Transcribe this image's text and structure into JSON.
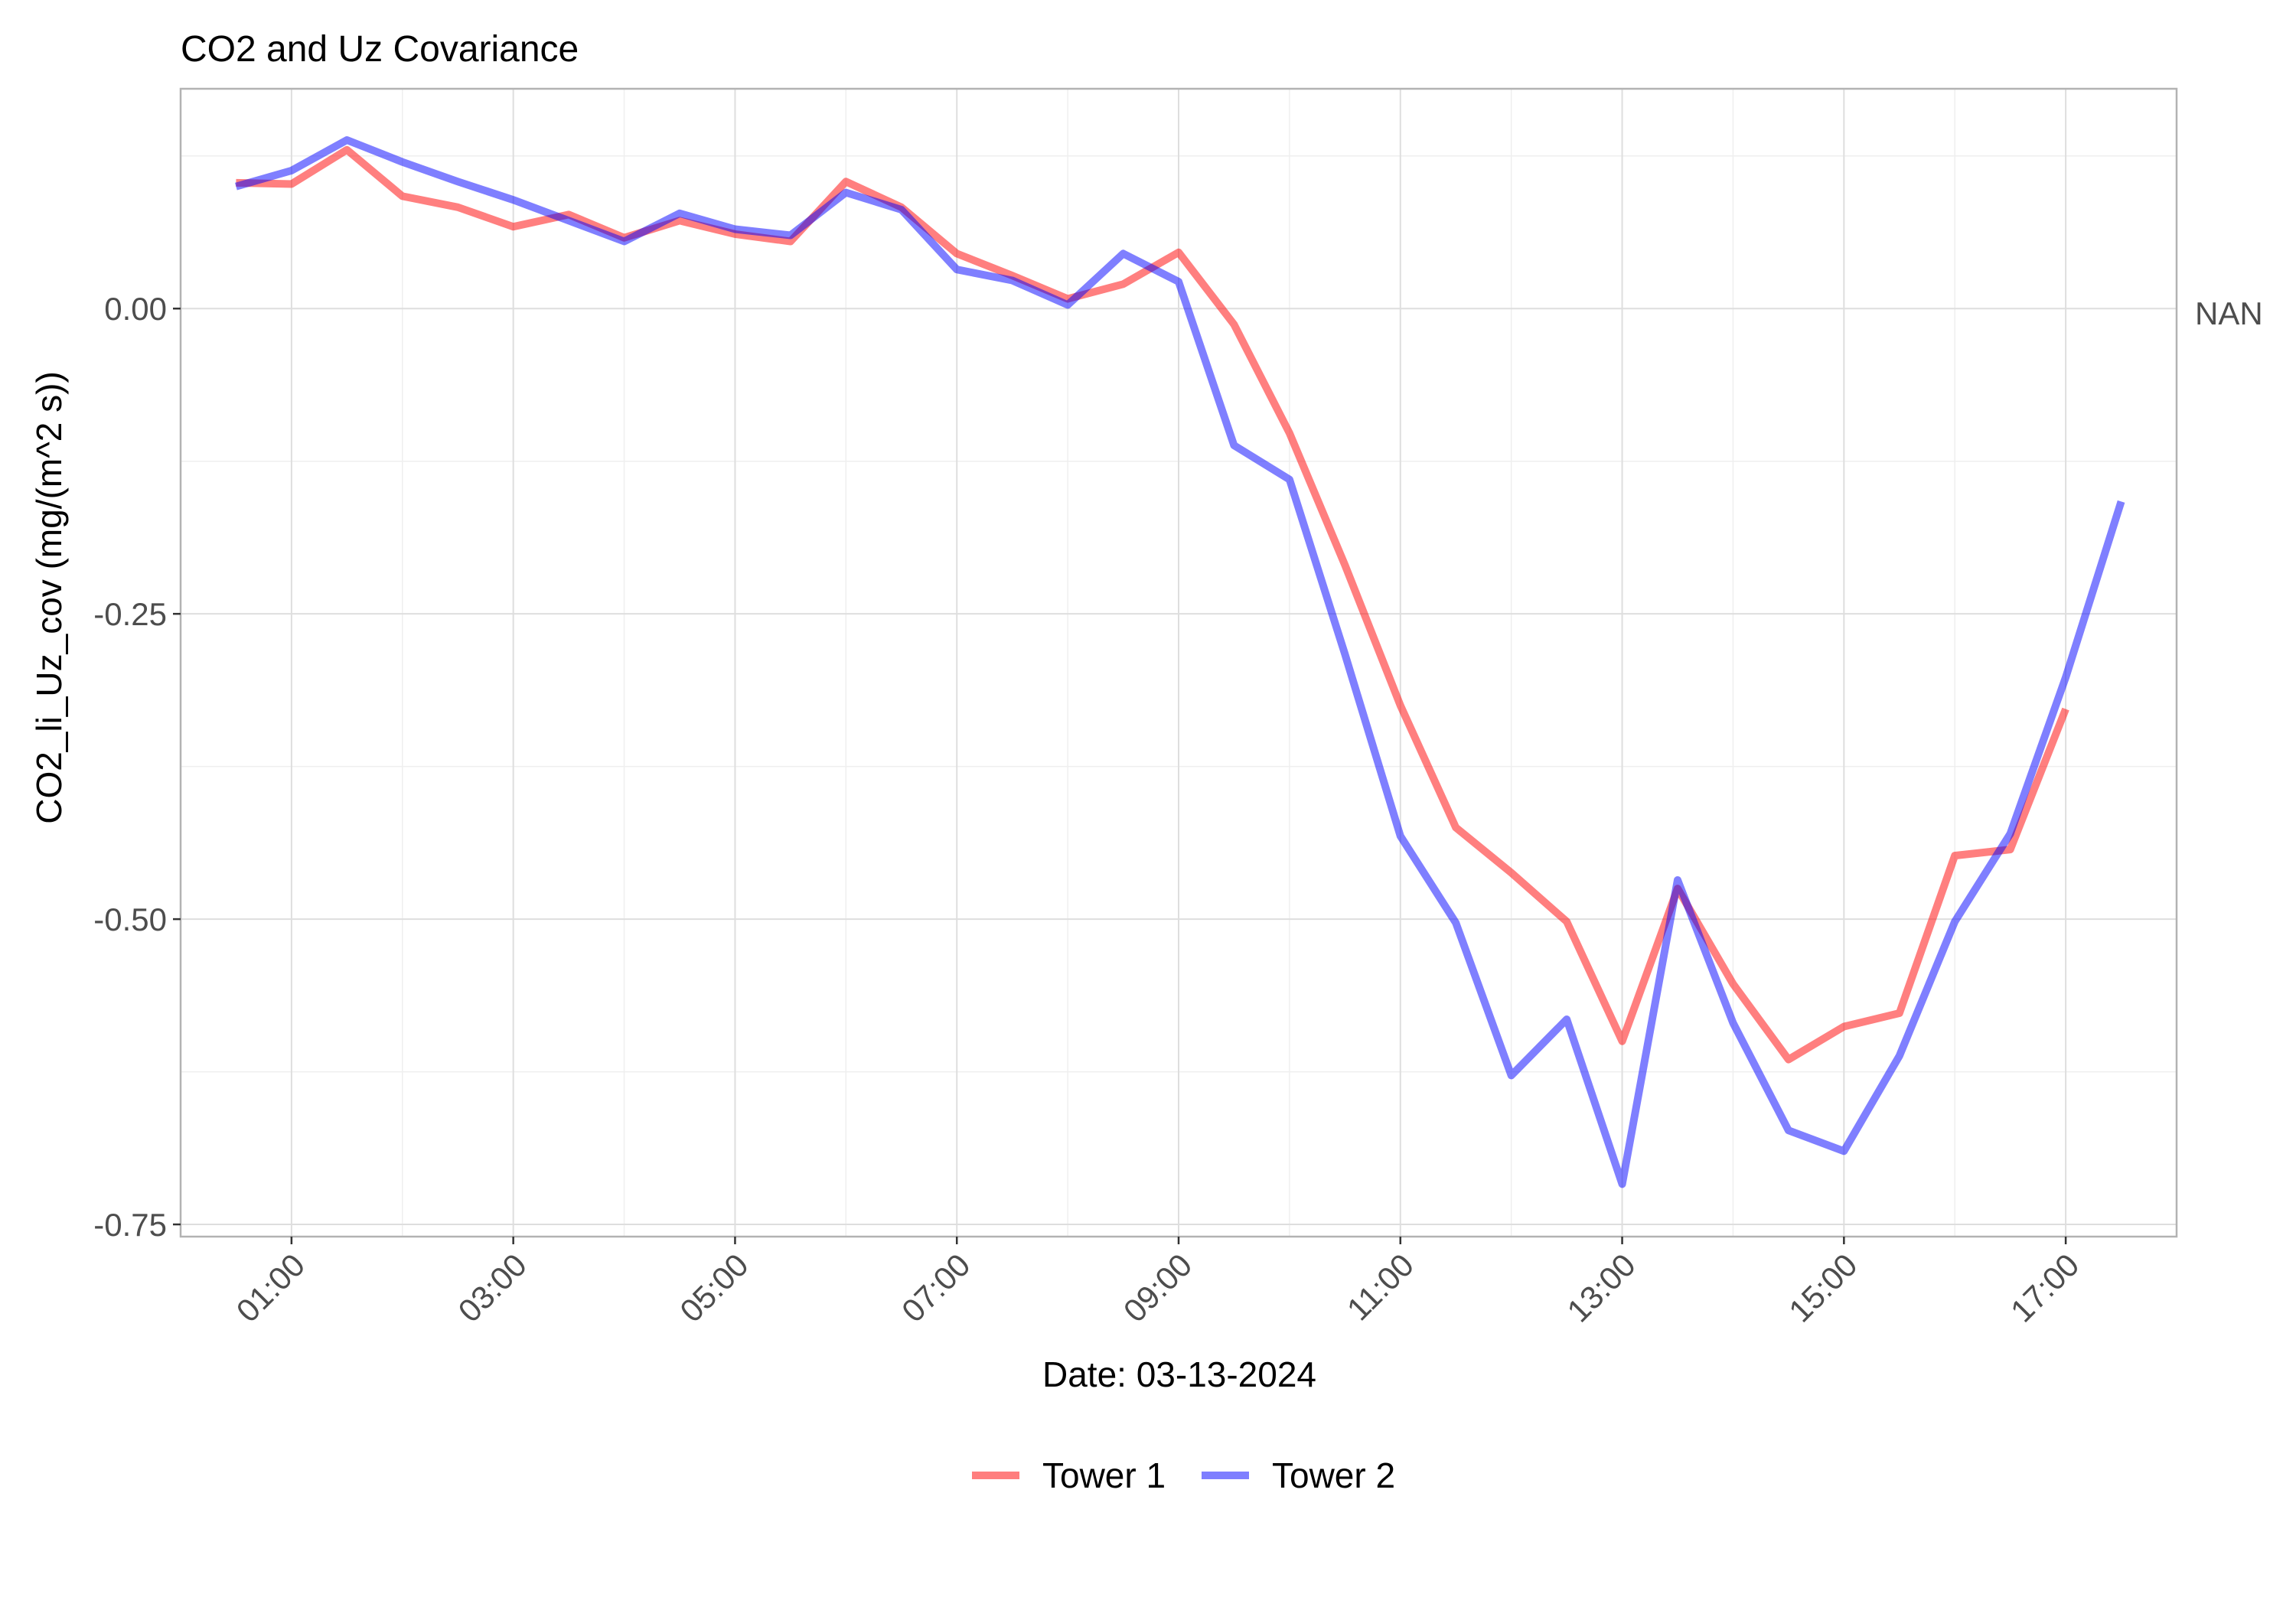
{
  "chart_data": {
    "type": "line",
    "title": "CO2 and Uz Covariance",
    "xlabel": "Date: 03-13-2024",
    "ylabel": "CO2_li_Uz_cov (mg/(m^2 s))",
    "secondary_axis_label": "NAN",
    "x_tick_labels": [
      "01:00",
      "03:00",
      "05:00",
      "07:00",
      "09:00",
      "11:00",
      "13:00",
      "15:00",
      "17:00"
    ],
    "y_tick_labels": [
      "0.00",
      "-0.25",
      "-0.50",
      "-0.75"
    ],
    "y_ticks": [
      0.0,
      -0.25,
      -0.5,
      -0.75
    ],
    "x_range_hours": [
      0.0,
      18.0
    ],
    "ylim": [
      -0.76,
      0.18
    ],
    "grid": true,
    "legend_position": "bottom",
    "x": [
      "00:30",
      "01:00",
      "01:30",
      "02:00",
      "02:30",
      "03:00",
      "03:30",
      "04:00",
      "04:30",
      "05:00",
      "05:30",
      "06:00",
      "06:30",
      "07:00",
      "07:30",
      "08:00",
      "08:30",
      "09:00",
      "09:30",
      "10:00",
      "10:30",
      "11:00",
      "11:30",
      "12:00",
      "12:30",
      "13:00",
      "13:30",
      "14:00",
      "14:30",
      "15:00",
      "15:30",
      "16:00",
      "16:30",
      "17:00",
      "17:30"
    ],
    "series": [
      {
        "name": "Tower 1",
        "color": "#ff0000",
        "values": [
          0.103,
          0.102,
          0.13,
          0.092,
          0.083,
          0.067,
          0.077,
          0.058,
          0.072,
          0.061,
          0.055,
          0.104,
          0.083,
          0.045,
          0.027,
          0.008,
          0.02,
          0.046,
          -0.013,
          -0.102,
          -0.21,
          -0.325,
          -0.425,
          -0.462,
          -0.502,
          -0.6,
          -0.475,
          -0.553,
          -0.615,
          -0.588,
          -0.577,
          -0.448,
          -0.443,
          -0.328,
          null
        ]
      },
      {
        "name": "Tower 2",
        "color": "#0000ff",
        "values": [
          0.1,
          0.113,
          0.138,
          0.12,
          0.104,
          0.089,
          0.072,
          0.055,
          0.078,
          0.065,
          0.06,
          0.095,
          0.081,
          0.032,
          0.023,
          0.003,
          0.045,
          0.022,
          -0.112,
          -0.14,
          -0.283,
          -0.432,
          -0.503,
          -0.628,
          -0.582,
          -0.717,
          -0.468,
          -0.585,
          -0.673,
          -0.69,
          -0.612,
          -0.502,
          -0.43,
          -0.302,
          -0.158
        ]
      }
    ]
  }
}
